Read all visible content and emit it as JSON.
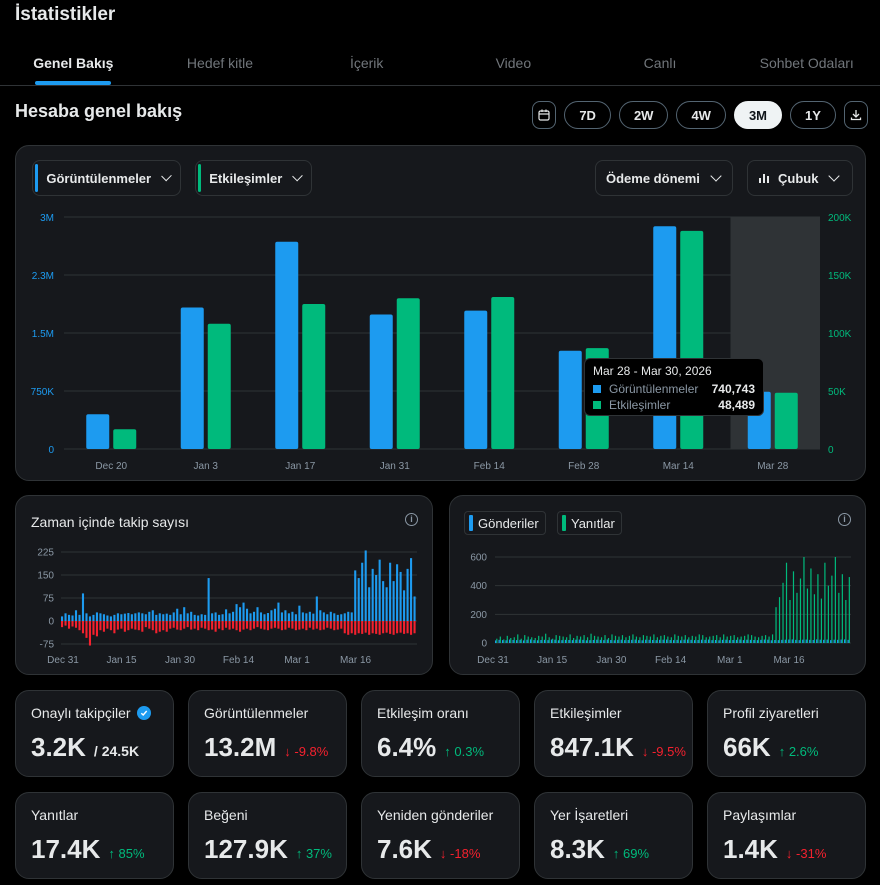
{
  "page": {
    "title": "İstatistikler"
  },
  "tabs": [
    {
      "label": "Genel Bakış",
      "active": true
    },
    {
      "label": "Hedef kitle"
    },
    {
      "label": "İçerik"
    },
    {
      "label": "Video"
    },
    {
      "label": "Canlı"
    },
    {
      "label": "Sohbet Odaları"
    }
  ],
  "overview": {
    "title": "Hesaba genel bakış",
    "ranges": [
      "7D",
      "2W",
      "4W",
      "3M",
      "1Y"
    ],
    "active_range": "3M"
  },
  "main_chart": {
    "metric1_label": "Görüntülenmeler",
    "metric2_label": "Etkileşimler",
    "period_label": "Ödeme dönemi",
    "type_label": "Çubuk",
    "colors": {
      "views": "#1d9bf0",
      "engagements": "#00ba7c"
    }
  },
  "tooltip": {
    "title": "Mar 28 - Mar 30, 2026",
    "row1_label": "Görüntülenmeler",
    "row1_value": "740,743",
    "row2_label": "Etkileşimler",
    "row2_value": "48,489"
  },
  "follow_chart": {
    "title": "Zaman içinde takip sayısı",
    "y_ticks": [
      "225",
      "150",
      "75",
      "0",
      "-75"
    ],
    "x_ticks": [
      "Dec 31",
      "Jan 15",
      "Jan 30",
      "Feb 14",
      "Mar 1",
      "Mar 16"
    ]
  },
  "posts_chart": {
    "chip1": "Gönderiler",
    "chip2": "Yanıtlar",
    "y_ticks": [
      "600",
      "400",
      "200",
      "0"
    ],
    "x_ticks": [
      "Dec 31",
      "Jan 15",
      "Jan 30",
      "Feb 14",
      "Mar 1",
      "Mar 16"
    ]
  },
  "stats": [
    {
      "label": "Onaylı takipçiler",
      "value": "3.2K",
      "sub": "/ 24.5K",
      "verified": true
    },
    {
      "label": "Görüntülenmeler",
      "value": "13.2M",
      "delta": "↓ -9.8%",
      "dir": "down"
    },
    {
      "label": "Etkileşim oranı",
      "value": "6.4%",
      "delta": "↑ 0.3%",
      "dir": "up"
    },
    {
      "label": "Etkileşimler",
      "value": "847.1K",
      "delta": "↓ -9.5%",
      "dir": "down"
    },
    {
      "label": "Profil ziyaretleri",
      "value": "66K",
      "delta": "↑ 2.6%",
      "dir": "up"
    },
    {
      "label": "Yanıtlar",
      "value": "17.4K",
      "delta": "↑ 85%",
      "dir": "up"
    },
    {
      "label": "Beğeni",
      "value": "127.9K",
      "delta": "↑ 37%",
      "dir": "up"
    },
    {
      "label": "Yeniden gönderiler",
      "value": "7.6K",
      "delta": "↓ -18%",
      "dir": "down"
    },
    {
      "label": "Yer İşaretleri",
      "value": "8.3K",
      "delta": "↑ 69%",
      "dir": "up"
    },
    {
      "label": "Paylaşımlar",
      "value": "1.4K",
      "delta": "↓ -31%",
      "dir": "down"
    }
  ],
  "chart_data": [
    {
      "type": "bar",
      "title": "Hesaba genel bakış",
      "categories": [
        "Dec 20",
        "Jan 3",
        "Jan 17",
        "Jan 31",
        "Feb 14",
        "Feb 28",
        "Mar 14",
        "Mar 28"
      ],
      "y_left_ticks": [
        "0",
        "750K",
        "1.5M",
        "2.3M",
        "3M"
      ],
      "y_right_ticks": [
        "0",
        "50K",
        "100K",
        "150K",
        "200K"
      ],
      "ylim_left": [
        0,
        3000000
      ],
      "ylim_right": [
        0,
        200000
      ],
      "highlighted_category": "Mar 28",
      "series": [
        {
          "name": "Görüntülenmeler",
          "axis": "left",
          "values": [
            450000,
            1830000,
            2680000,
            1740000,
            1790000,
            1270000,
            2880000,
            740743
          ]
        },
        {
          "name": "Etkileşimler",
          "axis": "right",
          "values": [
            17000,
            108000,
            125000,
            130000,
            131000,
            87000,
            188000,
            48489
          ]
        }
      ]
    },
    {
      "type": "bar",
      "title": "Zaman içinde takip sayısı",
      "ylim": [
        -100,
        250
      ],
      "series": [
        {
          "name": "gain",
          "values": [
            15,
            25,
            20,
            18,
            35,
            20,
            90,
            25,
            15,
            20,
            28,
            25,
            22,
            18,
            15,
            20,
            25,
            22,
            24,
            26,
            22,
            25,
            28,
            25,
            22,
            30,
            35,
            20,
            25,
            22,
            24,
            20,
            28,
            40,
            22,
            45,
            25,
            30,
            20,
            18,
            22,
            20,
            140,
            25,
            28,
            20,
            22,
            38,
            25,
            30,
            55,
            45,
            60,
            40,
            25,
            30,
            45,
            28,
            22,
            26,
            35,
            40,
            60,
            28,
            35,
            25,
            30,
            22,
            50,
            28,
            25,
            30,
            24,
            80,
            35,
            28,
            22,
            30,
            25,
            20,
            22,
            25,
            30,
            28,
            165,
            140,
            190,
            230,
            110,
            170,
            150,
            200,
            130,
            110,
            190,
            130,
            185,
            160,
            100,
            170,
            205,
            80
          ]
        },
        {
          "name": "loss",
          "values": [
            -20,
            -15,
            -25,
            -18,
            -22,
            -30,
            -40,
            -55,
            -80,
            -45,
            -50,
            -30,
            -35,
            -25,
            -30,
            -40,
            -28,
            -25,
            -35,
            -30,
            -25,
            -28,
            -30,
            -35,
            -20,
            -25,
            -30,
            -40,
            -35,
            -30,
            -35,
            -25,
            -22,
            -28,
            -30,
            -25,
            -20,
            -28,
            -25,
            -30,
            -22,
            -25,
            -30,
            -28,
            -35,
            -25,
            -30,
            -22,
            -28,
            -25,
            -30,
            -35,
            -28,
            -25,
            -30,
            -25,
            -20,
            -25,
            -28,
            -30,
            -25,
            -22,
            -25,
            -30,
            -28,
            -22,
            -25,
            -30,
            -28,
            -25,
            -30,
            -22,
            -28,
            -25,
            -30,
            -28,
            -22,
            -25,
            -30,
            -28,
            -25,
            -40,
            -45,
            -40,
            -45,
            -40,
            -42,
            -38,
            -45,
            -40,
            -42,
            -45,
            -40,
            -38,
            -42,
            -45,
            -40,
            -38,
            -42,
            -40,
            -45,
            -40
          ]
        }
      ]
    },
    {
      "type": "bar",
      "title": "Gönderiler / Yanıtlar",
      "ylim": [
        0,
        600
      ],
      "series": [
        {
          "name": "Gönderiler",
          "values": [
            18,
            22,
            20,
            19,
            24,
            21,
            20,
            22,
            18,
            23,
            25,
            20,
            19,
            21,
            22,
            20,
            24,
            23,
            19,
            20,
            22,
            21,
            20,
            23,
            24,
            22,
            19,
            20,
            21,
            23,
            22,
            20,
            24,
            21,
            19,
            22,
            23,
            20,
            21,
            22,
            24,
            20,
            19,
            23,
            22,
            21,
            20,
            22,
            23,
            24,
            21,
            20,
            22,
            19,
            23,
            24,
            22,
            20,
            21,
            23,
            22,
            24,
            20,
            21,
            19,
            22,
            23,
            20,
            21,
            22,
            24,
            20,
            23,
            22,
            21,
            20,
            22,
            24,
            23,
            19,
            21,
            20,
            22,
            23,
            24,
            25,
            22,
            20,
            23,
            24,
            22,
            21,
            25,
            23,
            22,
            24,
            20,
            23,
            22,
            24,
            25,
            22
          ]
        },
        {
          "name": "Yanıtlar",
          "values": [
            30,
            45,
            25,
            50,
            35,
            40,
            60,
            30,
            55,
            45,
            40,
            35,
            50,
            45,
            65,
            40,
            30,
            55,
            50,
            45,
            40,
            60,
            35,
            50,
            45,
            55,
            40,
            65,
            50,
            45,
            40,
            55,
            35,
            60,
            50,
            45,
            55,
            40,
            50,
            60,
            45,
            40,
            55,
            50,
            45,
            60,
            40,
            50,
            55,
            45,
            40,
            60,
            50,
            45,
            55,
            40,
            50,
            45,
            60,
            55,
            40,
            45,
            50,
            55,
            40,
            60,
            45,
            50,
            55,
            40,
            45,
            50,
            60,
            55,
            45,
            40,
            50,
            55,
            45,
            60,
            250,
            320,
            420,
            560,
            300,
            500,
            350,
            450,
            600,
            380,
            520,
            340,
            480,
            310,
            560,
            400,
            470,
            600,
            350,
            480,
            300,
            460
          ]
        }
      ]
    }
  ]
}
